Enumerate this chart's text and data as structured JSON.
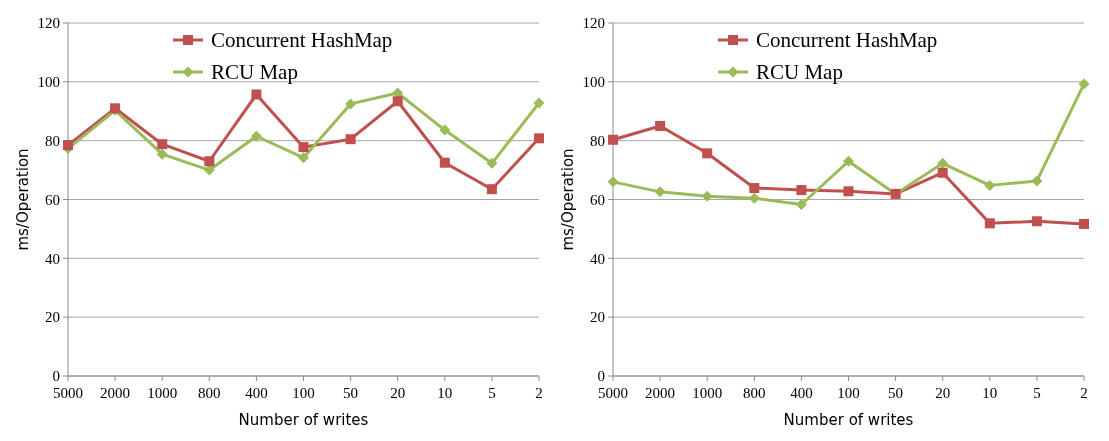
{
  "chart_data": [
    {
      "type": "line",
      "xlabel": "Number of writes",
      "ylabel": "ms/Operation",
      "categories": [
        "5000",
        "2000",
        "1000",
        "800",
        "400",
        "100",
        "50",
        "20",
        "10",
        "5",
        "2"
      ],
      "ylim": [
        0,
        120
      ],
      "yticks": [
        0,
        20,
        40,
        60,
        80,
        100,
        120
      ],
      "grid": "y",
      "legend": "top",
      "series": [
        {
          "name": "Concurrent HashMap",
          "color": "#c0504d",
          "marker": "square",
          "values": [
            78.5,
            91,
            78.8,
            73,
            95.7,
            77.8,
            80.5,
            93.4,
            72.5,
            63.5,
            80.8
          ]
        },
        {
          "name": "RCU Map",
          "color": "#9bbb59",
          "marker": "diamond",
          "values": [
            77.3,
            90.3,
            75.4,
            70,
            81.5,
            74.2,
            92.5,
            96.2,
            83.6,
            72.3,
            92.8
          ]
        }
      ]
    },
    {
      "type": "line",
      "xlabel": "Number of writes",
      "ylabel": "ms/Operation",
      "categories": [
        "5000",
        "2000",
        "1000",
        "800",
        "400",
        "100",
        "50",
        "20",
        "10",
        "5",
        "2"
      ],
      "ylim": [
        0,
        120
      ],
      "yticks": [
        0,
        20,
        40,
        60,
        80,
        100,
        120
      ],
      "grid": "y",
      "legend": "top",
      "series": [
        {
          "name": "Concurrent HashMap",
          "color": "#c0504d",
          "marker": "square",
          "values": [
            80.3,
            85,
            75.7,
            63.9,
            63.2,
            62.8,
            61.9,
            69.1,
            51.9,
            52.6,
            51.7
          ]
        },
        {
          "name": "RCU Map",
          "color": "#9bbb59",
          "marker": "diamond",
          "values": [
            66,
            62.6,
            61.1,
            60.4,
            58.3,
            73,
            61.9,
            72.3,
            64.8,
            66.3,
            99.3
          ]
        }
      ]
    }
  ]
}
